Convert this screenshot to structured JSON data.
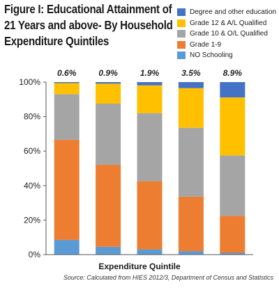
{
  "title": "Figure I: Educational Attainment of 21 Years and above- By Household Expenditure Quintiles",
  "xlabel": "Expenditure Quintile",
  "source": "Source: Calculated from HIES 2012/3, Department of Census and Statistics",
  "legend_order": [
    "Degree and other education",
    "Grade 12 & A/L Qualified",
    "Grade 10 & O/L Qualified",
    "Grade 1-9",
    "NO Schooling"
  ],
  "chart_data": {
    "type": "bar",
    "stacked": true,
    "categories": [
      "",
      "",
      "",
      "",
      ""
    ],
    "top_labels": [
      "0.6%",
      "0.9%",
      "1.9%",
      "3.5%",
      "8.9%"
    ],
    "ylim": [
      0,
      100
    ],
    "yticks": [
      0,
      20,
      40,
      60,
      80,
      100
    ],
    "ytick_labels": [
      "0%",
      "20%",
      "40%",
      "60%",
      "80%",
      "100%"
    ],
    "grid": false,
    "legend_position": "top-right",
    "series": [
      {
        "name": "NO Schooling",
        "color": "#5b9bd5",
        "values": [
          8.5,
          4.5,
          3.0,
          2.0,
          1.0
        ]
      },
      {
        "name": "Grade 1-9",
        "color": "#ed7d31",
        "values": [
          58.0,
          47.5,
          39.5,
          31.5,
          21.5
        ]
      },
      {
        "name": "Grade 10 & O/L Qualified",
        "color": "#a5a5a5",
        "values": [
          26.5,
          35.5,
          39.5,
          40.0,
          35.0
        ]
      },
      {
        "name": "Grade 12 & A/L Qualified",
        "color": "#ffc000",
        "values": [
          6.4,
          11.6,
          16.1,
          23.0,
          33.6
        ]
      },
      {
        "name": "Degree and other education",
        "color": "#4472c4",
        "values": [
          0.6,
          0.9,
          1.9,
          3.5,
          8.9
        ]
      }
    ]
  }
}
